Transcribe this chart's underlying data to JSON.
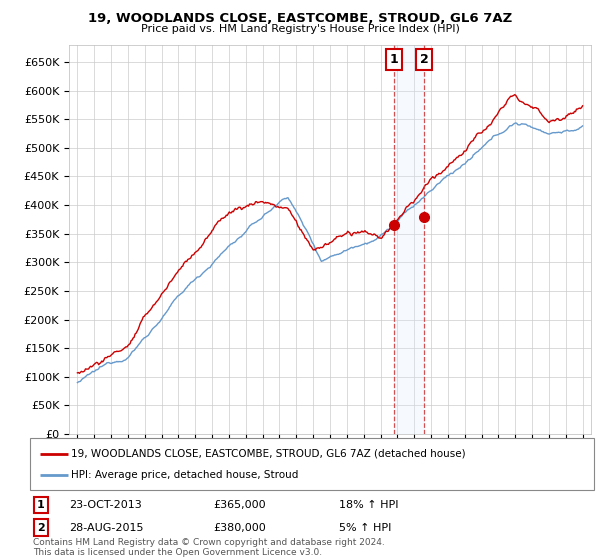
{
  "title": "19, WOODLANDS CLOSE, EASTCOMBE, STROUD, GL6 7AZ",
  "subtitle": "Price paid vs. HM Land Registry's House Price Index (HPI)",
  "ylim": [
    0,
    680000
  ],
  "yticks": [
    0,
    50000,
    100000,
    150000,
    200000,
    250000,
    300000,
    350000,
    400000,
    450000,
    500000,
    550000,
    600000,
    650000
  ],
  "ytick_labels": [
    "£0",
    "£50K",
    "£100K",
    "£150K",
    "£200K",
    "£250K",
    "£300K",
    "£350K",
    "£400K",
    "£450K",
    "£500K",
    "£550K",
    "£600K",
    "£650K"
  ],
  "hpi_color": "#6699cc",
  "price_color": "#cc0000",
  "shade_color": "#ddeeff",
  "transaction1": {
    "date": "23-OCT-2013",
    "price": 365000,
    "pct": "18%",
    "direction": "↑"
  },
  "transaction2": {
    "date": "28-AUG-2015",
    "price": 380000,
    "pct": "5%",
    "direction": "↑"
  },
  "t1_x": 2013.8,
  "t2_x": 2015.6,
  "t1_y": 365000,
  "t2_y": 380000,
  "legend_label1": "19, WOODLANDS CLOSE, EASTCOMBE, STROUD, GL6 7AZ (detached house)",
  "legend_label2": "HPI: Average price, detached house, Stroud",
  "footnote": "Contains HM Land Registry data © Crown copyright and database right 2024.\nThis data is licensed under the Open Government Licence v3.0.",
  "background_color": "#ffffff",
  "grid_color": "#cccccc",
  "xlim_left": 1994.5,
  "xlim_right": 2025.5
}
